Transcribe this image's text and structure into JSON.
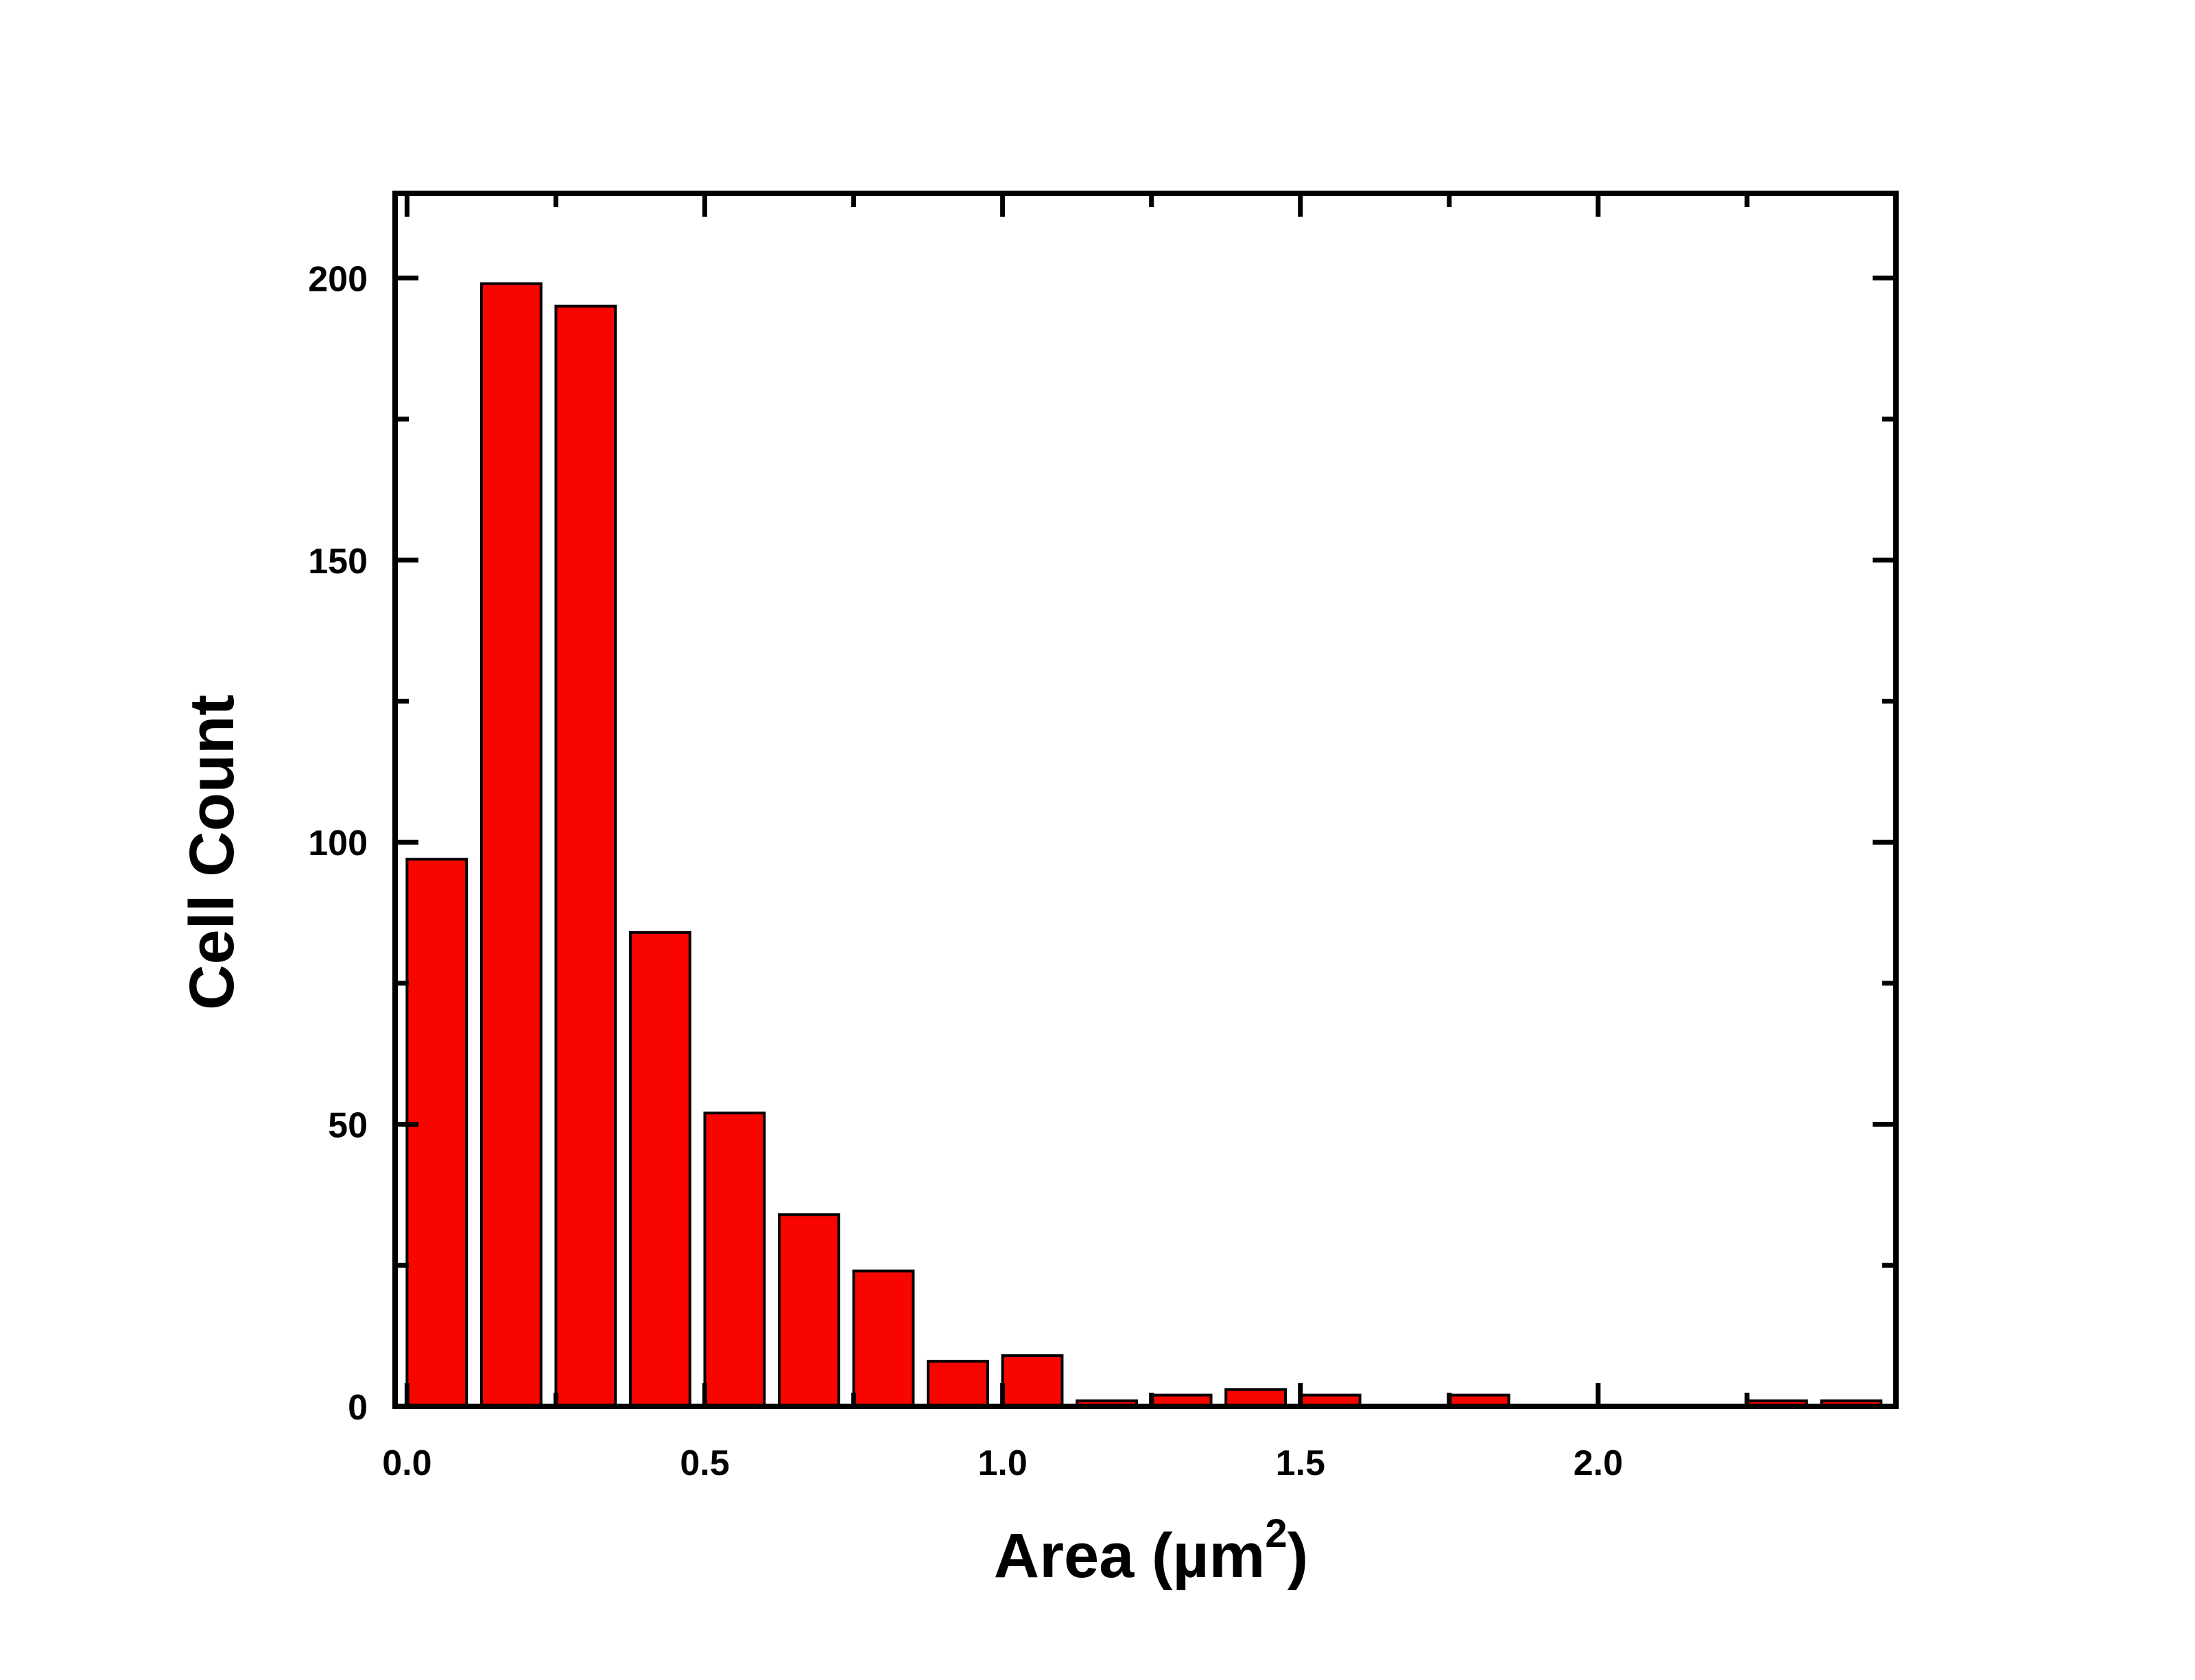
{
  "chart_data": {
    "type": "bar",
    "title": "",
    "xlabel": "Area (µm²)",
    "xlabel_parts": {
      "main": "Area (",
      "unit": "µm",
      "superscript": "2",
      "close": ")"
    },
    "ylabel": "Cell Count",
    "xlim": [
      -0.02,
      2.5
    ],
    "ylim": [
      0,
      215
    ],
    "x_ticks": [
      0.0,
      0.5,
      1.0,
      1.5,
      2.0
    ],
    "x_tick_labels": [
      "0.0",
      "0.5",
      "1.0",
      "1.5",
      "2.0"
    ],
    "y_ticks": [
      0,
      50,
      100,
      150,
      200
    ],
    "y_tick_labels": [
      "0",
      "50",
      "100",
      "150",
      "200"
    ],
    "bin_width": 0.1,
    "x": [
      0.05,
      0.175,
      0.3,
      0.425,
      0.55,
      0.675,
      0.8,
      0.925,
      1.05,
      1.175,
      1.3,
      1.425,
      1.55,
      1.675,
      1.8,
      1.925,
      2.05,
      2.175,
      2.3,
      2.425
    ],
    "values": [
      97,
      199,
      195,
      84,
      52,
      34,
      24,
      8,
      9,
      1,
      2,
      3,
      2,
      0,
      2,
      0,
      0,
      0,
      1,
      1
    ],
    "bar_color": "#f90500",
    "bar_edge_color": "#000000",
    "grid": false,
    "legend": "none"
  }
}
